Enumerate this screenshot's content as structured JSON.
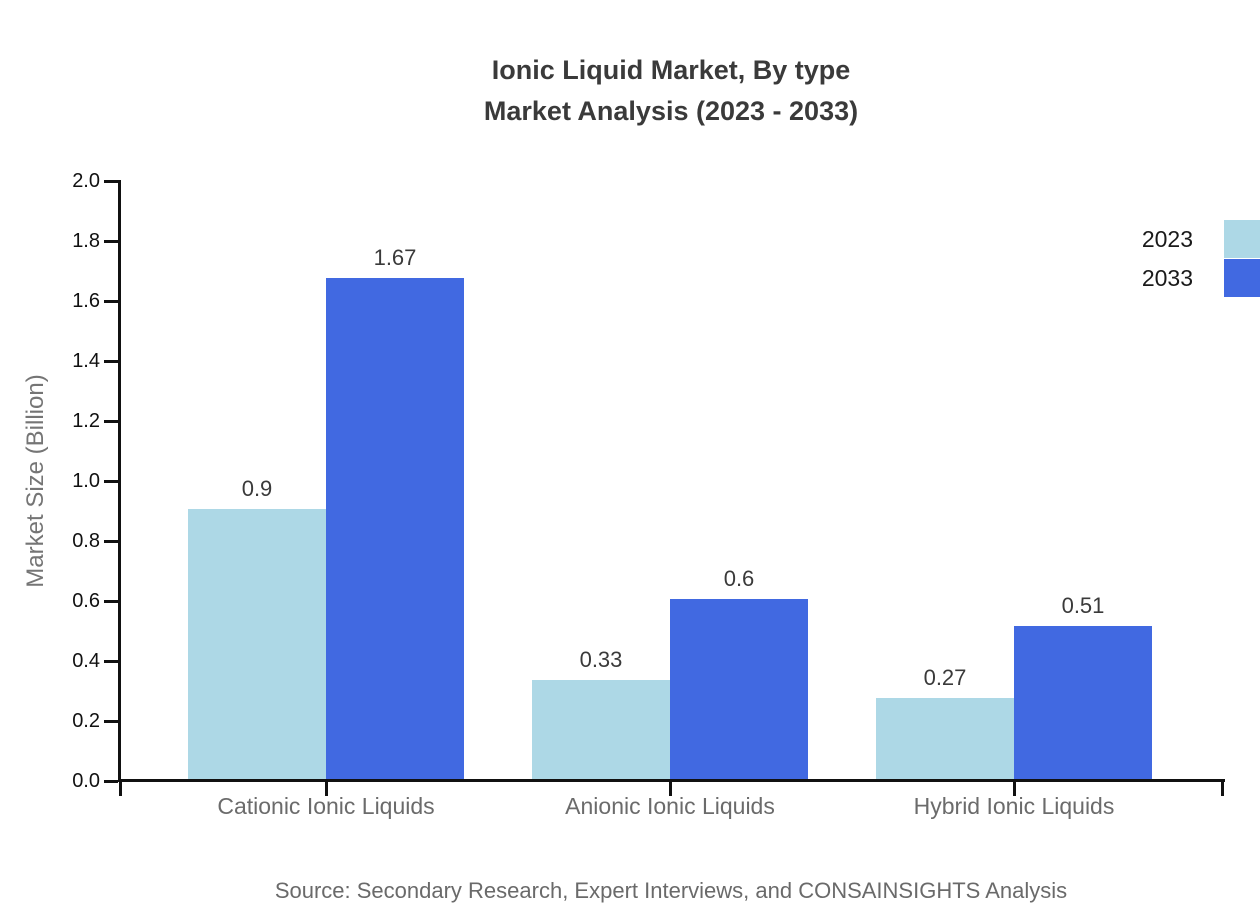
{
  "title": {
    "line1": "Ionic Liquid Market, By type",
    "line2": "Market Analysis (2023 - 2033)"
  },
  "chart_data": {
    "type": "bar",
    "categories": [
      "Cationic Ionic Liquids",
      "Anionic Ionic Liquids",
      "Hybrid Ionic Liquids"
    ],
    "series": [
      {
        "name": "2023",
        "color": "#ADD8E6",
        "values": [
          0.9,
          0.33,
          0.27
        ],
        "value_labels": [
          "0.9",
          "0.33",
          "0.27"
        ]
      },
      {
        "name": "2033",
        "color": "#4169E1",
        "values": [
          1.67,
          0.6,
          0.51
        ],
        "value_labels": [
          "1.67",
          "0.6",
          "0.51"
        ]
      }
    ],
    "ylabel": "Market Size (Billion)",
    "ylim": [
      0,
      2.0
    ],
    "ytick_step": 0.2,
    "yticks": [
      "0.0",
      "0.2",
      "0.4",
      "0.6",
      "0.8",
      "1.0",
      "1.2",
      "1.4",
      "1.6",
      "1.8",
      "2.0"
    ],
    "grid": false,
    "legend_position": "top-right"
  },
  "source": {
    "text": "Source: Secondary Research, Expert Interviews, and CONSAINSIGHTS Analysis"
  }
}
